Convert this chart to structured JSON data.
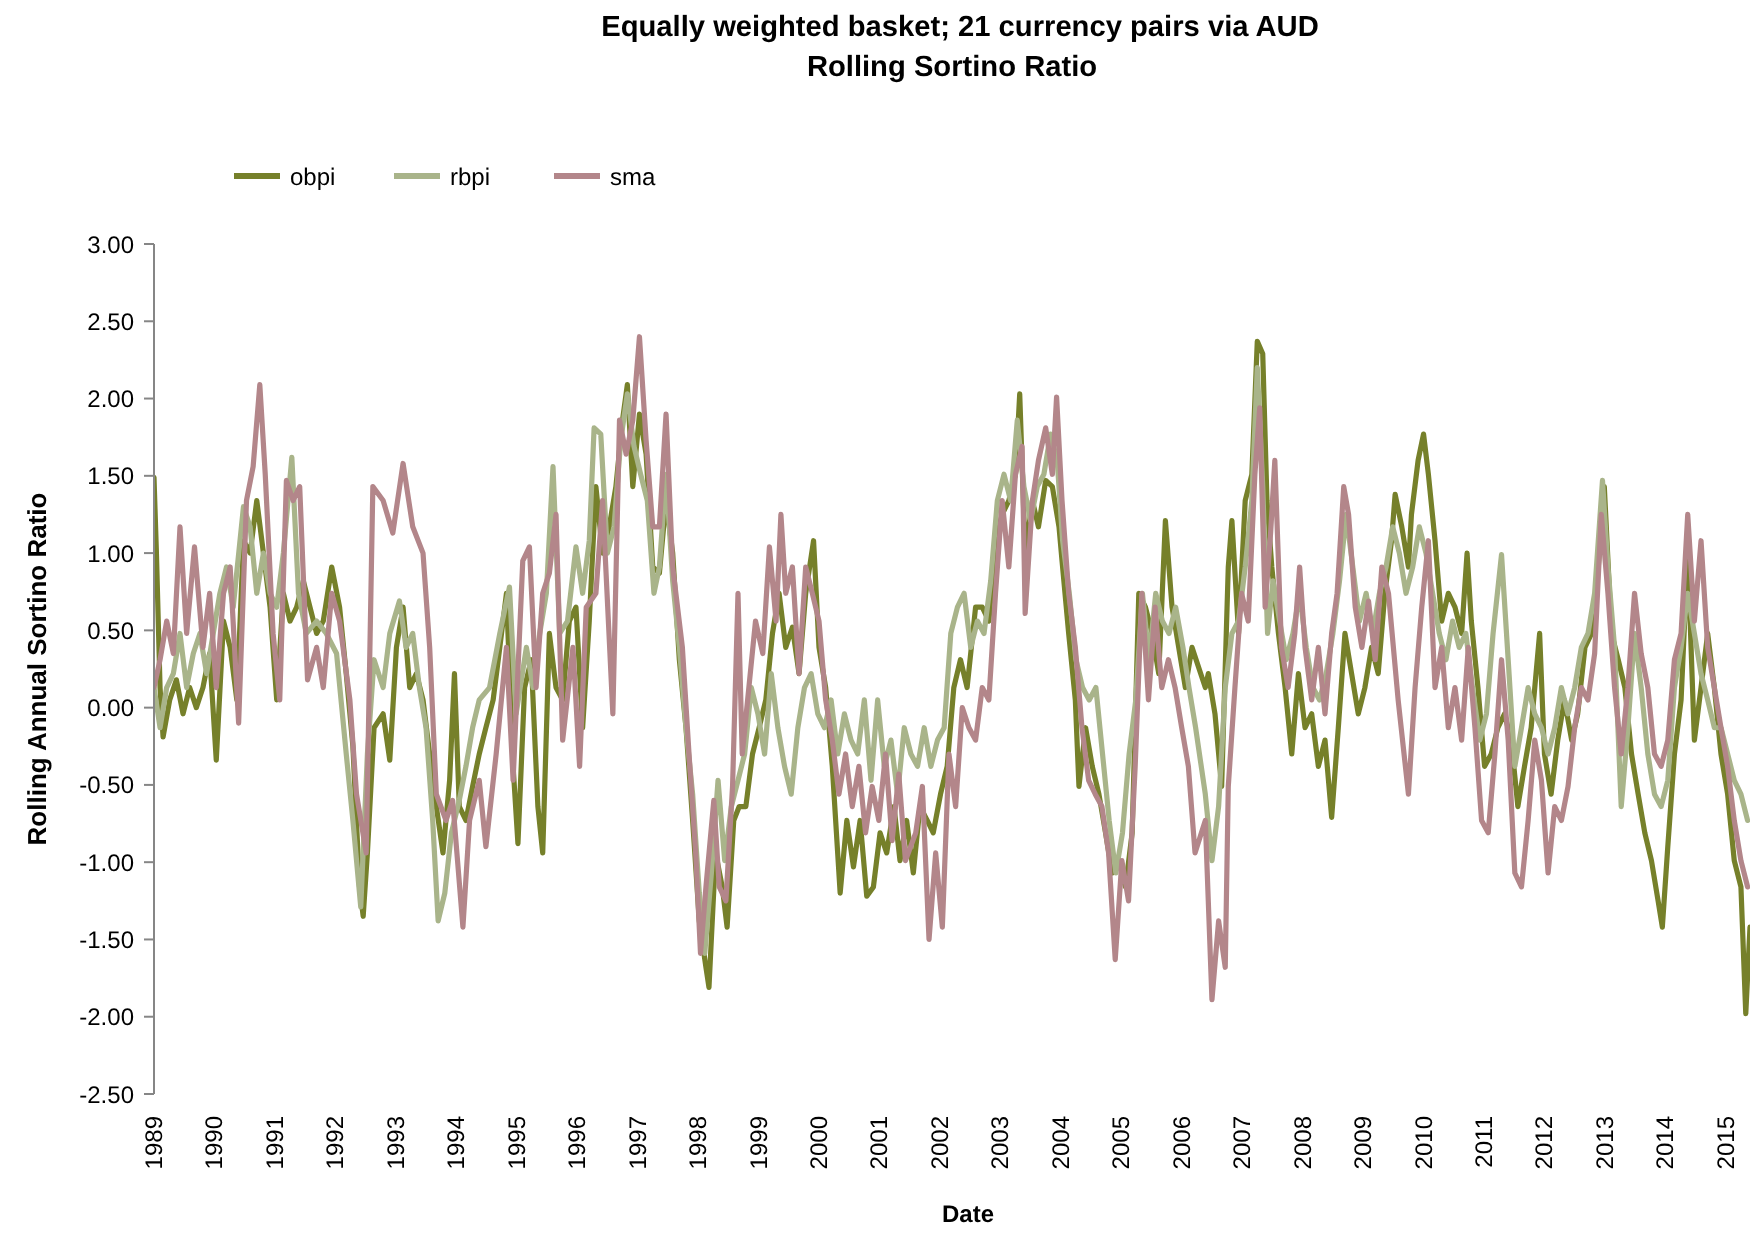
{
  "chart_data": {
    "type": "line",
    "title": "Equally weighted basket; 21 currency pairs via AUD",
    "subtitle": "Rolling Sortino Ratio",
    "xlabel": "Date",
    "ylabel": "Rolling Annual Sortino Ratio",
    "xlim": [
      1989,
      2015.4
    ],
    "xticks": [
      1989,
      1990,
      1991,
      1992,
      1993,
      1994,
      1995,
      1996,
      1997,
      1998,
      1999,
      2000,
      2001,
      2002,
      2003,
      2004,
      2005,
      2006,
      2007,
      2008,
      2009,
      2010,
      2011,
      2012,
      2013,
      2014,
      2015
    ],
    "ylim": [
      -2.5,
      3
    ],
    "yticks": [
      {
        "value": -2.5,
        "label": "-2.50"
      },
      {
        "value": -2,
        "label": "-2.00"
      },
      {
        "value": -1.5,
        "label": "-1.50"
      },
      {
        "value": -1,
        "label": "-1.00"
      },
      {
        "value": -0.5,
        "label": "-0.50"
      },
      {
        "value": 0,
        "label": "0.00"
      },
      {
        "value": 0.5,
        "label": "0.50"
      },
      {
        "value": 1,
        "label": "1.00"
      },
      {
        "value": 1.5,
        "label": "1.50"
      },
      {
        "value": 2,
        "label": "2.00"
      },
      {
        "value": 2.5,
        "label": "2.50"
      },
      {
        "value": 3,
        "label": "3.00"
      }
    ],
    "legend": "top left",
    "marker": "none",
    "series": [
      {
        "name": "obpi",
        "color": "#76802a",
        "x": [
          1989.0,
          1989.04,
          1989.1,
          1989.15,
          1989.26,
          1989.37,
          1989.48,
          1989.59,
          1989.7,
          1989.81,
          1989.92,
          1990.03,
          1990.15,
          1990.26,
          1990.37,
          1990.48,
          1990.59,
          1990.7,
          1990.81,
          1990.92,
          1991.03,
          1991.14,
          1991.25,
          1991.36,
          1991.47,
          1991.58,
          1991.69,
          1991.8,
          1991.94,
          1992.07,
          1992.18,
          1992.29,
          1992.4,
          1992.46,
          1992.53,
          1992.64,
          1992.79,
          1992.9,
          1993.01,
          1993.12,
          1993.23,
          1993.34,
          1993.45,
          1993.56,
          1993.67,
          1993.78,
          1993.89,
          1993.97,
          1994.05,
          1994.16,
          1994.27,
          1994.38,
          1994.49,
          1994.61,
          1994.72,
          1994.83,
          1994.94,
          1995.02,
          1995.13,
          1995.24,
          1995.35,
          1995.43,
          1995.54,
          1995.65,
          1995.76,
          1995.87,
          1995.98,
          1996.09,
          1996.2,
          1996.31,
          1996.42,
          1996.53,
          1996.64,
          1996.75,
          1996.83,
          1996.92,
          1997.03,
          1997.14,
          1997.25,
          1997.36,
          1997.47,
          1997.58,
          1997.69,
          1997.8,
          1997.91,
          1998.02,
          1998.13,
          1998.18,
          1998.29,
          1998.4,
          1998.48,
          1998.59,
          1998.68,
          1998.79,
          1998.9,
          1999.01,
          1999.12,
          1999.23,
          1999.34,
          1999.45,
          1999.56,
          1999.67,
          1999.78,
          1999.91,
          2000.0,
          2000.11,
          2000.22,
          2000.35,
          2000.46,
          2000.57,
          2000.68,
          2000.79,
          2000.9,
          2001.01,
          2001.12,
          2001.24,
          2001.34,
          2001.45,
          2001.56,
          2001.67,
          2001.79,
          2001.89,
          2002.01,
          2002.12,
          2002.23,
          2002.34,
          2002.45,
          2002.59,
          2002.7,
          2002.81,
          2002.92,
          2003.03,
          2003.14,
          2003.25,
          2003.32,
          2003.41,
          2003.53,
          2003.63,
          2003.75,
          2003.86,
          2003.97,
          2004.02,
          2004.13,
          2004.24,
          2004.3,
          2004.41,
          2004.52,
          2004.63,
          2004.74,
          2004.85,
          2004.96,
          2005.07,
          2005.18,
          2005.29,
          2005.4,
          2005.51,
          2005.62,
          2005.73,
          2005.84,
          2005.95,
          2006.06,
          2006.17,
          2006.39,
          2006.44,
          2006.55,
          2006.66,
          2006.77,
          2006.83,
          2006.94,
          2007.05,
          2007.16,
          2007.25,
          2007.34,
          2007.41,
          2007.49,
          2007.6,
          2007.71,
          2007.82,
          2007.93,
          2008.04,
          2008.15,
          2008.26,
          2008.37,
          2008.48,
          2008.59,
          2008.7,
          2008.81,
          2008.92,
          2009.03,
          2009.14,
          2009.25,
          2009.36,
          2009.47,
          2009.53,
          2009.64,
          2009.75,
          2009.8,
          2009.91,
          2010.0,
          2010.08,
          2010.19,
          2010.3,
          2010.41,
          2010.52,
          2010.63,
          2010.72,
          2010.79,
          2010.9,
          2011.01,
          2011.12,
          2011.23,
          2011.34,
          2011.45,
          2011.56,
          2011.67,
          2011.78,
          2011.92,
          2012.0,
          2012.11,
          2012.22,
          2012.33,
          2012.45,
          2012.55,
          2012.67,
          2012.78,
          2012.89,
          2012.99,
          2013.11,
          2013.22,
          2013.33,
          2013.44,
          2013.55,
          2013.66,
          2013.77,
          2013.88,
          2013.95,
          2014.04,
          2014.15,
          2014.26,
          2014.37,
          2014.48,
          2014.59,
          2014.7,
          2014.81,
          2014.92,
          2015.03,
          2015.14,
          2015.25,
          2015.33,
          2015.4
        ],
        "values": [
          1.49,
          1.0,
          0.13,
          -0.19,
          0.05,
          0.18,
          -0.04,
          0.13,
          0.0,
          0.13,
          0.35,
          -0.34,
          0.56,
          0.39,
          0.05,
          1.08,
          1.0,
          1.34,
          1.0,
          0.65,
          0.05,
          0.74,
          0.56,
          0.65,
          0.82,
          0.65,
          0.48,
          0.56,
          0.91,
          0.65,
          0.22,
          -0.25,
          -1.16,
          -1.35,
          -0.94,
          -0.13,
          -0.04,
          -0.34,
          0.39,
          0.65,
          0.13,
          0.22,
          0.05,
          -0.3,
          -0.64,
          -0.94,
          -0.47,
          0.22,
          -0.64,
          -0.73,
          -0.51,
          -0.3,
          -0.13,
          0.05,
          0.39,
          0.74,
          -0.38,
          -0.88,
          0.13,
          0.31,
          -0.64,
          -0.94,
          0.48,
          0.13,
          0.05,
          0.56,
          0.65,
          -0.13,
          0.56,
          1.43,
          1.0,
          1.17,
          1.43,
          1.86,
          2.09,
          1.43,
          1.9,
          1.64,
          0.91,
          0.87,
          1.34,
          1.0,
          0.31,
          -0.13,
          -0.73,
          -1.38,
          -1.68,
          -1.81,
          -0.94,
          -1.16,
          -1.42,
          -0.73,
          -0.64,
          -0.64,
          -0.3,
          -0.13,
          0.05,
          0.48,
          0.74,
          0.39,
          0.52,
          0.22,
          0.74,
          1.08,
          0.39,
          0.13,
          -0.38,
          -1.2,
          -0.73,
          -1.03,
          -0.73,
          -1.22,
          -1.16,
          -0.81,
          -0.94,
          -0.64,
          -0.99,
          -0.73,
          -1.07,
          -0.64,
          -0.73,
          -0.81,
          -0.56,
          -0.38,
          0.13,
          0.31,
          0.13,
          0.65,
          0.65,
          0.56,
          1.08,
          1.25,
          1.34,
          1.51,
          2.03,
          1.0,
          1.34,
          1.17,
          1.47,
          1.43,
          1.17,
          0.95,
          0.48,
          0.05,
          -0.51,
          -0.13,
          -0.38,
          -0.56,
          -0.81,
          -1.07,
          -0.99,
          -1.16,
          -0.81,
          0.74,
          0.65,
          0.48,
          0.22,
          1.21,
          0.65,
          0.39,
          0.13,
          0.39,
          0.13,
          0.22,
          -0.04,
          -0.51,
          0.91,
          1.21,
          0.48,
          1.34,
          1.51,
          2.37,
          2.29,
          1.34,
          0.91,
          0.48,
          0.13,
          -0.3,
          0.22,
          -0.13,
          -0.04,
          -0.38,
          -0.21,
          -0.71,
          -0.13,
          0.48,
          0.22,
          -0.04,
          0.13,
          0.39,
          0.22,
          0.74,
          1.08,
          1.38,
          1.17,
          0.91,
          1.25,
          1.6,
          1.77,
          1.51,
          1.08,
          0.56,
          0.74,
          0.65,
          0.48,
          1.0,
          0.56,
          0.13,
          -0.38,
          -0.3,
          -0.13,
          -0.04,
          -0.21,
          -0.64,
          -0.38,
          -0.13,
          0.48,
          -0.3,
          -0.56,
          -0.21,
          0.05,
          -0.21,
          -0.04,
          0.39,
          0.48,
          0.91,
          1.43,
          0.48,
          0.31,
          0.13,
          -0.3,
          -0.56,
          -0.81,
          -0.99,
          -1.25,
          -1.42,
          -0.9,
          -0.3,
          0.05,
          1.0,
          -0.21,
          0.13,
          0.48,
          0.13,
          -0.3,
          -0.56,
          -0.99,
          -1.16,
          -1.98,
          -1.42
        ]
      },
      {
        "name": "rbpi",
        "color": "#a9b48a",
        "x": [
          1989.0,
          1989.1,
          1989.21,
          1989.32,
          1989.43,
          1989.54,
          1989.65,
          1989.76,
          1989.87,
          1989.98,
          1990.09,
          1990.2,
          1990.31,
          1990.48,
          1990.59,
          1990.7,
          1990.81,
          1990.92,
          1991.03,
          1991.14,
          1991.28,
          1991.39,
          1991.52,
          1991.69,
          1991.85,
          1992.02,
          1992.18,
          1992.29,
          1992.42,
          1992.53,
          1992.64,
          1992.79,
          1992.9,
          1993.06,
          1993.17,
          1993.28,
          1993.39,
          1993.5,
          1993.61,
          1993.7,
          1993.81,
          1993.92,
          1994.05,
          1994.16,
          1994.27,
          1994.38,
          1994.55,
          1994.72,
          1994.88,
          1994.99,
          1995.16,
          1995.27,
          1995.38,
          1995.49,
          1995.6,
          1995.71,
          1995.84,
          1995.98,
          1996.09,
          1996.2,
          1996.28,
          1996.39,
          1996.5,
          1996.61,
          1996.72,
          1996.83,
          1996.94,
          1997.05,
          1997.16,
          1997.27,
          1997.36,
          1997.47,
          1997.58,
          1997.69,
          1997.8,
          1997.91,
          1998.02,
          1998.11,
          1998.22,
          1998.33,
          1998.44,
          1998.55,
          1998.66,
          1998.77,
          1998.88,
          1998.99,
          1999.1,
          1999.21,
          1999.32,
          1999.43,
          1999.54,
          1999.65,
          1999.76,
          1999.87,
          1999.98,
          2000.09,
          2000.2,
          2000.31,
          2000.42,
          2000.53,
          2000.64,
          2000.75,
          2000.86,
          2000.97,
          2001.08,
          2001.19,
          2001.3,
          2001.41,
          2001.52,
          2001.63,
          2001.74,
          2001.85,
          2001.96,
          2002.07,
          2002.18,
          2002.29,
          2002.4,
          2002.51,
          2002.62,
          2002.73,
          2002.84,
          2002.95,
          2003.06,
          2003.17,
          2003.28,
          2003.39,
          2003.5,
          2003.61,
          2003.72,
          2003.83,
          2003.94,
          2004.03,
          2004.14,
          2004.25,
          2004.36,
          2004.47,
          2004.58,
          2004.69,
          2004.8,
          2004.91,
          2005.02,
          2005.13,
          2005.24,
          2005.35,
          2005.46,
          2005.57,
          2005.68,
          2005.79,
          2005.9,
          2006.02,
          2006.12,
          2006.23,
          2006.39,
          2006.5,
          2006.61,
          2006.72,
          2006.83,
          2006.94,
          2007.05,
          2007.16,
          2007.25,
          2007.34,
          2007.42,
          2007.51,
          2007.62,
          2007.73,
          2007.84,
          2007.95,
          2008.06,
          2008.17,
          2008.28,
          2008.39,
          2008.5,
          2008.61,
          2008.72,
          2008.83,
          2008.94,
          2009.05,
          2009.16,
          2009.27,
          2009.38,
          2009.49,
          2009.6,
          2009.71,
          2009.82,
          2009.93,
          2010.04,
          2010.15,
          2010.26,
          2010.37,
          2010.48,
          2010.59,
          2010.7,
          2010.81,
          2010.93,
          2011.04,
          2011.15,
          2011.29,
          2011.4,
          2011.51,
          2011.62,
          2011.73,
          2011.84,
          2011.95,
          2012.06,
          2012.17,
          2012.28,
          2012.39,
          2012.5,
          2012.61,
          2012.72,
          2012.83,
          2012.96,
          2013.05,
          2013.16,
          2013.27,
          2013.38,
          2013.49,
          2013.6,
          2013.71,
          2013.82,
          2013.93,
          2014.04,
          2014.15,
          2014.26,
          2014.37,
          2014.48,
          2014.59,
          2014.7,
          2014.81,
          2014.92,
          2015.03,
          2015.14,
          2015.25,
          2015.36
        ],
        "values": [
          0.13,
          -0.13,
          0.13,
          0.22,
          0.48,
          0.13,
          0.35,
          0.48,
          0.22,
          0.48,
          0.74,
          0.91,
          0.65,
          1.3,
          1.17,
          0.74,
          1.0,
          0.74,
          0.65,
          1.0,
          1.62,
          0.74,
          0.48,
          0.56,
          0.48,
          0.35,
          -0.3,
          -0.73,
          -1.29,
          -0.3,
          0.31,
          0.13,
          0.48,
          0.69,
          0.39,
          0.48,
          0.13,
          -0.13,
          -0.73,
          -1.38,
          -1.2,
          -0.81,
          -0.6,
          -0.38,
          -0.13,
          0.05,
          0.13,
          0.48,
          0.78,
          -0.04,
          0.39,
          0.13,
          0.48,
          0.74,
          1.56,
          0.48,
          0.56,
          1.04,
          0.74,
          1.08,
          1.81,
          1.77,
          1.0,
          1.17,
          1.73,
          2.03,
          1.69,
          1.51,
          1.34,
          0.74,
          0.91,
          1.51,
          0.82,
          0.39,
          -0.13,
          -0.56,
          -1.2,
          -1.59,
          -1.07,
          -0.47,
          -0.99,
          -0.64,
          -0.47,
          -0.3,
          0.13,
          -0.04,
          -0.3,
          0.22,
          -0.13,
          -0.38,
          -0.56,
          -0.13,
          0.13,
          0.22,
          -0.04,
          -0.13,
          0.05,
          -0.3,
          -0.04,
          -0.21,
          -0.3,
          0.05,
          -0.47,
          0.05,
          -0.38,
          -0.21,
          -0.56,
          -0.13,
          -0.3,
          -0.38,
          -0.13,
          -0.38,
          -0.21,
          -0.13,
          0.48,
          0.65,
          0.74,
          0.39,
          0.56,
          0.48,
          0.82,
          1.34,
          1.51,
          1.34,
          1.86,
          1.43,
          1.21,
          1.43,
          1.51,
          1.77,
          1.6,
          1.08,
          0.74,
          0.31,
          0.13,
          0.05,
          0.13,
          -0.3,
          -0.73,
          -1.07,
          -0.81,
          -0.3,
          0.05,
          0.74,
          0.31,
          0.74,
          0.56,
          0.48,
          0.65,
          0.39,
          0.13,
          -0.13,
          -0.56,
          -0.99,
          -0.64,
          0.13,
          0.48,
          0.56,
          0.91,
          1.34,
          2.2,
          1.43,
          0.48,
          0.82,
          0.56,
          0.31,
          0.48,
          0.74,
          0.39,
          0.13,
          0.05,
          0.22,
          0.48,
          0.82,
          1.25,
          0.91,
          0.56,
          0.74,
          0.48,
          0.74,
          0.91,
          1.17,
          1.0,
          0.74,
          0.91,
          1.17,
          1.0,
          0.74,
          0.48,
          0.31,
          0.56,
          0.39,
          0.48,
          0.13,
          -0.21,
          -0.04,
          0.48,
          0.99,
          0.31,
          -0.38,
          -0.13,
          0.13,
          -0.04,
          -0.13,
          -0.3,
          -0.13,
          0.13,
          -0.04,
          0.13,
          0.39,
          0.48,
          0.74,
          1.47,
          0.91,
          0.39,
          -0.64,
          -0.13,
          0.48,
          0.13,
          -0.3,
          -0.56,
          -0.64,
          -0.47,
          0.13,
          0.39,
          0.74,
          0.48,
          0.22,
          0.05,
          -0.13,
          -0.13,
          -0.3,
          -0.47,
          -0.56,
          -0.73
        ]
      },
      {
        "name": "sma",
        "color": "#b3868a",
        "x": [
          1989.0,
          1989.1,
          1989.21,
          1989.32,
          1989.43,
          1989.54,
          1989.67,
          1989.81,
          1989.92,
          1990.03,
          1990.15,
          1990.26,
          1990.4,
          1990.53,
          1990.64,
          1990.75,
          1990.84,
          1990.97,
          1991.08,
          1991.19,
          1991.3,
          1991.41,
          1991.54,
          1991.69,
          1991.8,
          1991.94,
          1992.07,
          1992.24,
          1992.35,
          1992.51,
          1992.62,
          1992.79,
          1992.95,
          1993.12,
          1993.28,
          1993.45,
          1993.56,
          1993.67,
          1993.83,
          1993.94,
          1994.11,
          1994.22,
          1994.38,
          1994.49,
          1994.66,
          1994.83,
          1994.94,
          1995.1,
          1995.21,
          1995.32,
          1995.43,
          1995.54,
          1995.65,
          1995.76,
          1995.93,
          1996.04,
          1996.15,
          1996.31,
          1996.42,
          1996.59,
          1996.7,
          1996.81,
          1996.92,
          1997.03,
          1997.14,
          1997.25,
          1997.36,
          1997.47,
          1997.58,
          1997.74,
          1997.85,
          1997.96,
          1998.04,
          1998.13,
          1998.26,
          1998.35,
          1998.46,
          1998.57,
          1998.66,
          1998.73,
          1998.84,
          1998.95,
          1999.07,
          1999.18,
          1999.29,
          1999.37,
          1999.45,
          1999.56,
          1999.67,
          1999.78,
          1999.89,
          2000.0,
          2000.11,
          2000.22,
          2000.33,
          2000.44,
          2000.55,
          2000.66,
          2000.77,
          2000.88,
          2000.99,
          2001.1,
          2001.21,
          2001.32,
          2001.43,
          2001.6,
          2001.71,
          2001.82,
          2001.93,
          2002.04,
          2002.15,
          2002.26,
          2002.37,
          2002.48,
          2002.59,
          2002.7,
          2002.81,
          2002.92,
          2003.03,
          2003.14,
          2003.25,
          2003.36,
          2003.41,
          2003.53,
          2003.63,
          2003.75,
          2003.86,
          2003.93,
          2004.02,
          2004.13,
          2004.24,
          2004.35,
          2004.46,
          2004.57,
          2004.68,
          2004.79,
          2004.9,
          2005.01,
          2005.12,
          2005.23,
          2005.34,
          2005.45,
          2005.56,
          2005.67,
          2005.78,
          2005.89,
          2006.0,
          2006.11,
          2006.22,
          2006.39,
          2006.5,
          2006.61,
          2006.72,
          2006.77,
          2006.88,
          2006.99,
          2007.1,
          2007.21,
          2007.29,
          2007.38,
          2007.47,
          2007.54,
          2007.65,
          2007.76,
          2007.87,
          2007.95,
          2008.04,
          2008.15,
          2008.26,
          2008.37,
          2008.48,
          2008.57,
          2008.68,
          2008.76,
          2008.87,
          2008.98,
          2009.09,
          2009.2,
          2009.31,
          2009.42,
          2009.58,
          2009.75,
          2009.86,
          2009.97,
          2010.08,
          2010.19,
          2010.3,
          2010.41,
          2010.52,
          2010.63,
          2010.74,
          2010.85,
          2010.96,
          2011.07,
          2011.18,
          2011.29,
          2011.4,
          2011.51,
          2011.62,
          2011.73,
          2011.84,
          2011.95,
          2012.06,
          2012.17,
          2012.28,
          2012.39,
          2012.5,
          2012.61,
          2012.72,
          2012.83,
          2012.94,
          2013.05,
          2013.16,
          2013.27,
          2013.38,
          2013.49,
          2013.6,
          2013.71,
          2013.82,
          2013.93,
          2014.04,
          2014.15,
          2014.26,
          2014.37,
          2014.48,
          2014.59,
          2014.7,
          2014.81,
          2014.92,
          2015.03,
          2015.14,
          2015.25,
          2015.36
        ],
        "values": [
          0.13,
          0.31,
          0.56,
          0.35,
          1.17,
          0.48,
          1.04,
          0.39,
          0.74,
          0.13,
          0.74,
          0.91,
          -0.1,
          1.34,
          1.56,
          2.09,
          1.51,
          0.48,
          0.05,
          1.47,
          1.34,
          1.43,
          0.18,
          0.39,
          0.13,
          0.74,
          0.56,
          0.05,
          -0.56,
          -0.94,
          1.43,
          1.34,
          1.13,
          1.58,
          1.17,
          1.0,
          0.39,
          -0.56,
          -0.73,
          -0.6,
          -1.42,
          -0.73,
          -0.47,
          -0.9,
          -0.3,
          0.39,
          -0.47,
          0.95,
          1.04,
          0.13,
          0.74,
          0.87,
          1.25,
          -0.21,
          0.39,
          -0.38,
          0.65,
          0.74,
          1.34,
          -0.04,
          1.86,
          1.64,
          1.86,
          2.4,
          1.73,
          1.17,
          1.17,
          1.9,
          0.91,
          0.39,
          -0.3,
          -0.94,
          -1.59,
          -1.16,
          -0.6,
          -1.16,
          -1.25,
          -0.51,
          0.74,
          -0.3,
          0.13,
          0.56,
          0.35,
          1.04,
          0.56,
          1.25,
          0.74,
          0.91,
          0.22,
          0.91,
          0.74,
          0.56,
          0.05,
          -0.21,
          -0.56,
          -0.3,
          -0.64,
          -0.38,
          -0.81,
          -0.51,
          -0.73,
          -0.3,
          -0.86,
          -0.43,
          -0.99,
          -0.81,
          -0.51,
          -1.5,
          -0.94,
          -1.42,
          -0.3,
          -0.64,
          0.0,
          -0.13,
          -0.21,
          0.13,
          0.05,
          0.74,
          1.34,
          0.91,
          1.51,
          1.69,
          0.61,
          1.34,
          1.6,
          1.81,
          1.51,
          2.01,
          1.34,
          0.74,
          0.39,
          -0.13,
          -0.47,
          -0.56,
          -0.64,
          -0.94,
          -1.63,
          -0.99,
          -1.25,
          -0.38,
          0.74,
          0.05,
          0.65,
          0.13,
          0.31,
          0.13,
          -0.13,
          -0.38,
          -0.94,
          -0.73,
          -1.89,
          -1.38,
          -1.68,
          -0.51,
          0.13,
          0.74,
          0.56,
          1.51,
          1.94,
          0.65,
          1.13,
          1.6,
          0.39,
          0.13,
          0.48,
          0.91,
          0.39,
          0.05,
          0.39,
          -0.04,
          0.48,
          0.74,
          1.43,
          1.25,
          0.65,
          0.39,
          0.69,
          0.31,
          0.91,
          0.74,
          0.05,
          -0.56,
          0.13,
          0.65,
          1.08,
          0.13,
          0.39,
          -0.13,
          0.13,
          -0.21,
          0.39,
          -0.13,
          -0.73,
          -0.81,
          -0.3,
          0.31,
          -0.21,
          -1.07,
          -1.16,
          -0.73,
          -0.21,
          -0.47,
          -1.07,
          -0.64,
          -0.73,
          -0.51,
          -0.13,
          0.13,
          0.05,
          0.35,
          1.25,
          0.74,
          0.13,
          -0.3,
          0.13,
          0.74,
          0.35,
          0.13,
          -0.3,
          -0.38,
          -0.21,
          0.31,
          0.48,
          1.25,
          0.56,
          1.08,
          0.39,
          0.13,
          -0.13,
          -0.38,
          -0.73,
          -0.99,
          -1.16
        ]
      }
    ]
  }
}
